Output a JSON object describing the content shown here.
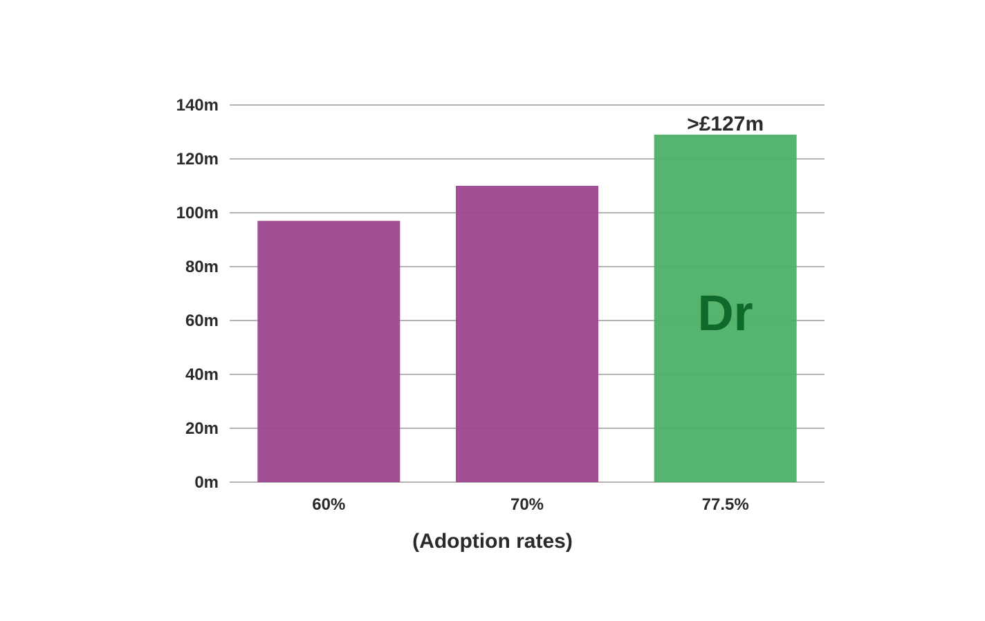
{
  "chart_data": {
    "type": "bar",
    "categories": [
      "60%",
      "70%",
      "77.5%"
    ],
    "values": [
      97,
      110,
      129
    ],
    "ylim": [
      0,
      140
    ],
    "yticks": [
      0,
      20,
      40,
      60,
      80,
      100,
      120,
      140
    ],
    "ytick_labels": [
      "0m",
      "20m",
      "40m",
      "60m",
      "80m",
      "100m",
      "120m",
      "140m"
    ],
    "xlabel": "(Adoption rates)",
    "ylabel": "",
    "title": "",
    "grid": true,
    "bar_colors": [
      "#9e4690",
      "#9e4690",
      "#4cb065"
    ],
    "highlight": {
      "category": "77.5%",
      "data_label": ">£127m",
      "logo_text": "Dr",
      "logo_color": "#0d6a2a"
    },
    "gridline_color": "#9a9a9a",
    "text_color": "#2a2a2a"
  }
}
